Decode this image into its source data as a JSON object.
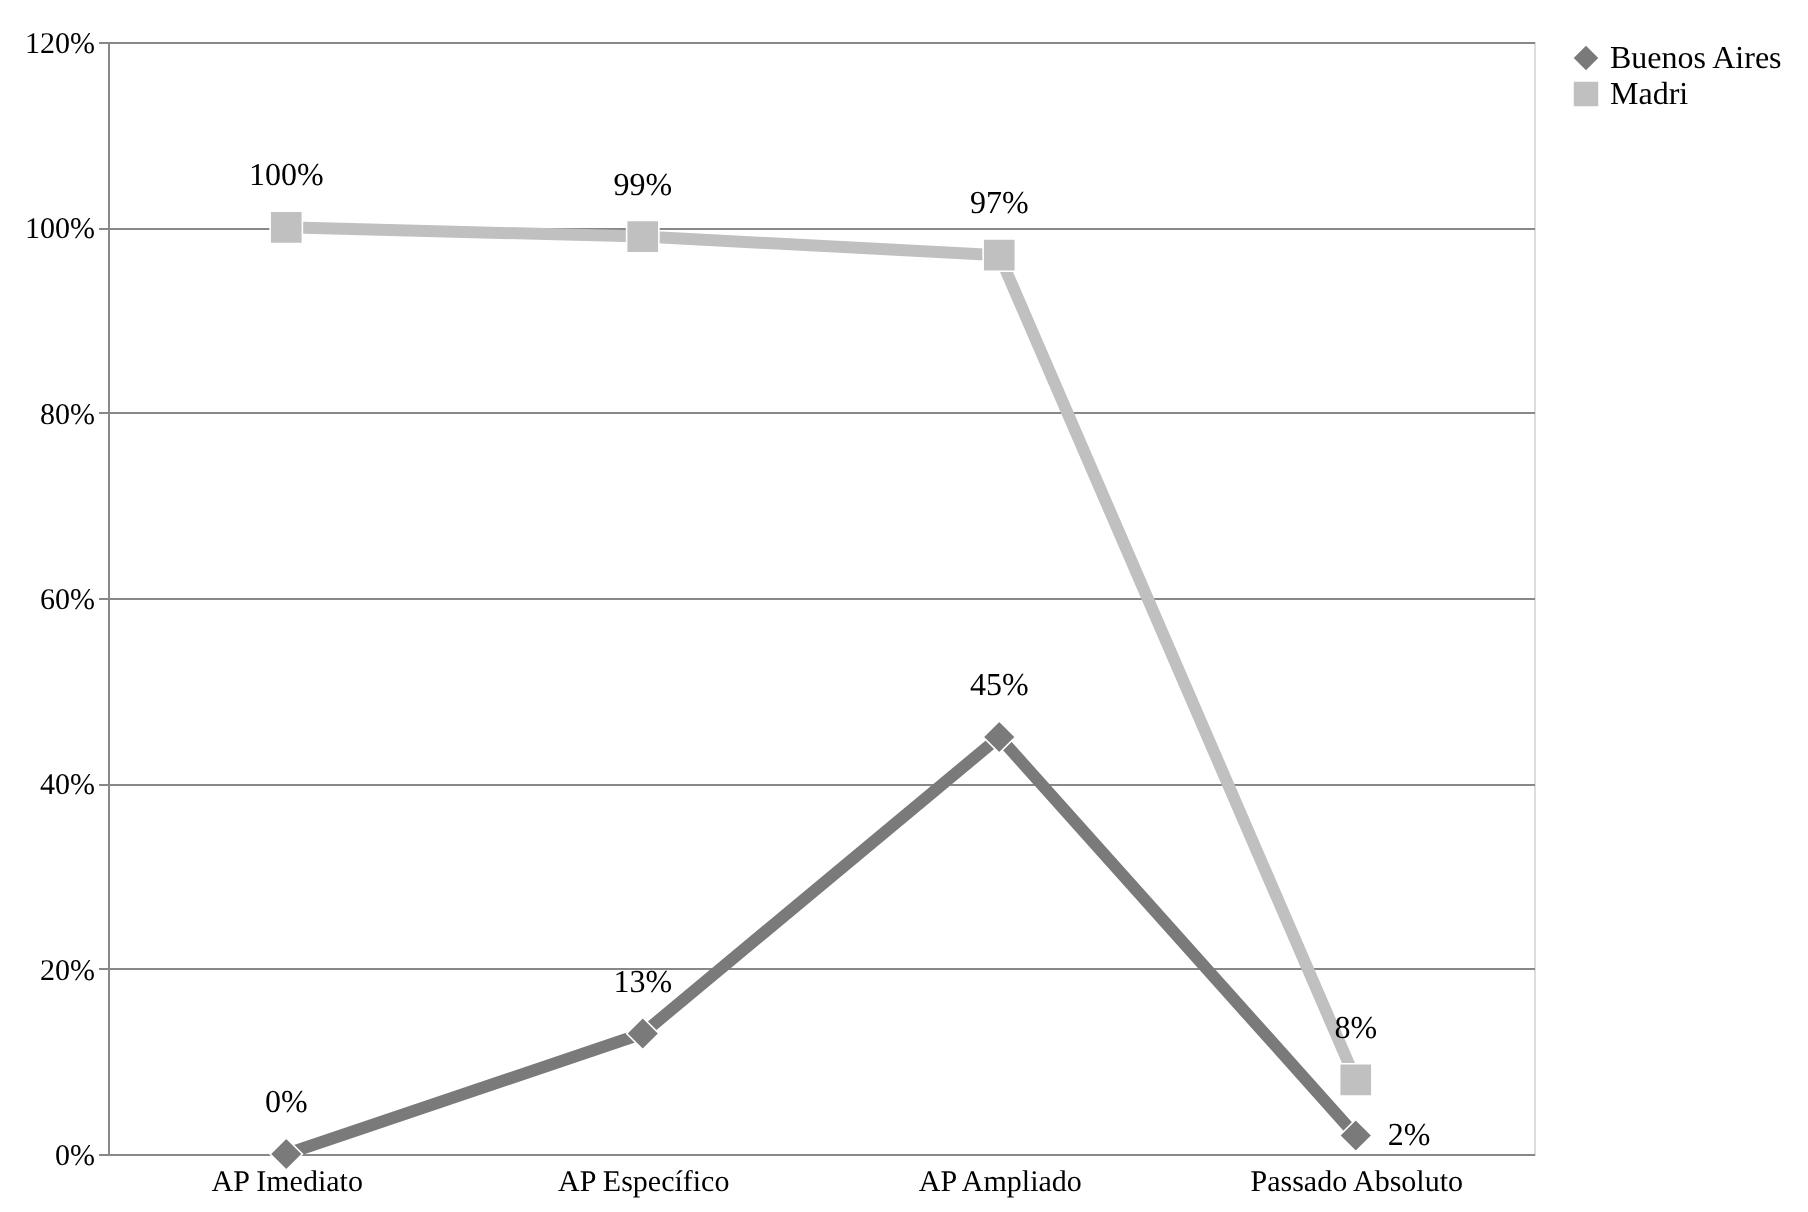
{
  "chart_data": {
    "type": "line",
    "categories": [
      "AP Imediato",
      "AP Específico",
      "AP Ampliado",
      "Passado Absoluto"
    ],
    "series": [
      {
        "name": "Buenos Aires",
        "color": "#7a7a7a",
        "marker": "diamond",
        "values": [
          0,
          13,
          45,
          2
        ],
        "value_labels": [
          "0%",
          "13%",
          "45%",
          "2%"
        ]
      },
      {
        "name": "Madri",
        "color": "#c0c0c0",
        "marker": "square",
        "values": [
          100,
          99,
          97,
          8
        ],
        "value_labels": [
          "100%",
          "99%",
          "97%",
          "8%"
        ]
      }
    ],
    "ylim": [
      0,
      120
    ],
    "yticks": [
      {
        "value": 0,
        "label": "0%"
      },
      {
        "value": 20,
        "label": "20%"
      },
      {
        "value": 40,
        "label": "40%"
      },
      {
        "value": 60,
        "label": "60%"
      },
      {
        "value": 80,
        "label": "80%"
      },
      {
        "value": 100,
        "label": "100%"
      },
      {
        "value": 120,
        "label": "120%"
      }
    ],
    "grid": "y",
    "legend": "right",
    "line_style": "solid"
  }
}
